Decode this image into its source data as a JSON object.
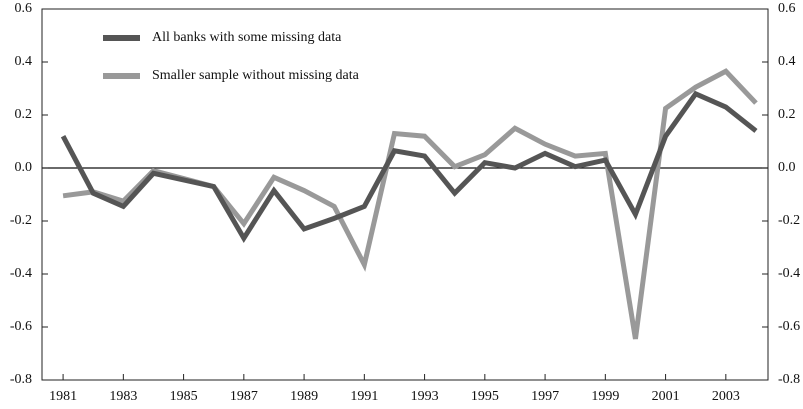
{
  "chart_data": {
    "type": "line",
    "x": [
      1981,
      1982,
      1983,
      1984,
      1985,
      1986,
      1987,
      1988,
      1989,
      1990,
      1991,
      1992,
      1993,
      1994,
      1995,
      1996,
      1997,
      1998,
      1999,
      2000,
      2001,
      2002,
      2003,
      2004
    ],
    "series": [
      {
        "name": "All banks with some missing data",
        "color": "#555555",
        "values": [
          0.12,
          -0.095,
          -0.145,
          -0.02,
          -0.045,
          -0.07,
          -0.265,
          -0.085,
          -0.23,
          -0.19,
          -0.145,
          0.065,
          0.045,
          -0.095,
          0.02,
          0,
          0.055,
          0.005,
          0.03,
          -0.175,
          0.12,
          0.28,
          0.23,
          0.14
        ]
      },
      {
        "name": "Smaller sample without missing data",
        "color": "#999999",
        "values": [
          -0.105,
          -0.09,
          -0.125,
          -0.01,
          -0.04,
          -0.07,
          -0.21,
          -0.035,
          -0.085,
          -0.145,
          -0.365,
          0.13,
          0.12,
          0.005,
          0.05,
          0.15,
          0.09,
          0.045,
          0.055,
          -0.645,
          0.225,
          0.305,
          0.365,
          0.245
        ]
      }
    ],
    "xlim": [
      1980.3,
      2004.4
    ],
    "xticks": [
      1981,
      1983,
      1985,
      1987,
      1989,
      1991,
      1993,
      1995,
      1997,
      1999,
      2001,
      2003
    ],
    "ylim": [
      -0.8,
      0.6
    ],
    "yticks": [
      0.6,
      0.4,
      0.2,
      {
        "value": 0,
        "label": "0.0"
      },
      -0.2,
      -0.4,
      -0.6,
      -0.8
    ],
    "y2lim": [
      -0.8,
      0.6
    ],
    "y2ticks": [
      0.6,
      0.4,
      0.2,
      {
        "value": 0,
        "label": "0.0"
      },
      -0.2,
      -0.4,
      -0.6,
      -0.8
    ],
    "legend": "upper-left"
  }
}
